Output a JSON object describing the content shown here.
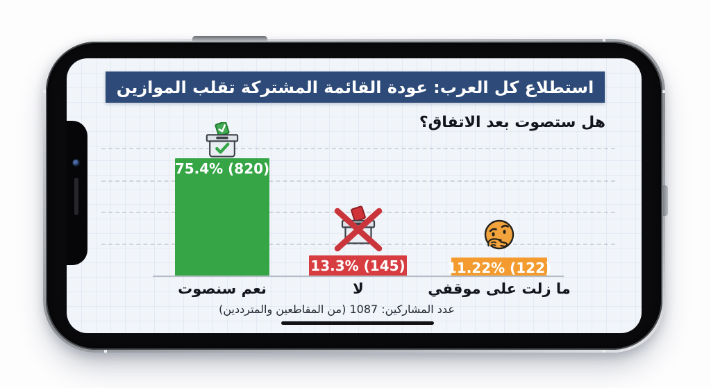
{
  "chart_data": {
    "type": "bar",
    "title": "استطلاع كل العرب: عودة القائمة المشتركة تقلب الموازين",
    "question": "هل ستصوت بعد الاتفاق؟",
    "categories": [
      "نعم سنصوت",
      "لا",
      "ما زلت على موقفي"
    ],
    "values": [
      75.4,
      13.3,
      11.22
    ],
    "counts": [
      820,
      145,
      122
    ],
    "bars": [
      {
        "category": "نعم سنصوت",
        "value": 75.4,
        "count": 820,
        "value_label": "75.4% (820)",
        "color": "#35a546",
        "icon": "ballot-box-check-icon"
      },
      {
        "category": "لا",
        "value": 13.3,
        "count": 145,
        "value_label": "13.3% (145)",
        "color": "#d63c40",
        "icon": "ballot-box-crossed-icon"
      },
      {
        "category": "ما زلت على موقفي",
        "value": 11.22,
        "count": 122,
        "value_label": "11.22% (122)",
        "color": "#f39b2e",
        "icon": "thinking-face-icon"
      }
    ],
    "footnote": "عدد المشاركين: 1087 (من المقاطعين والمترددين)",
    "ylim": [
      0,
      100
    ],
    "grid": "dashed-horizontal",
    "legend": "none"
  },
  "colors": {
    "title_bg": "#2d4a78",
    "title_text": "#ffffff",
    "yes_bar": "#35a546",
    "no_bar": "#d63c40",
    "undecided_bar": "#f39b2e",
    "screen_bg": "#f1f5fa",
    "text_dark": "#14141c"
  }
}
